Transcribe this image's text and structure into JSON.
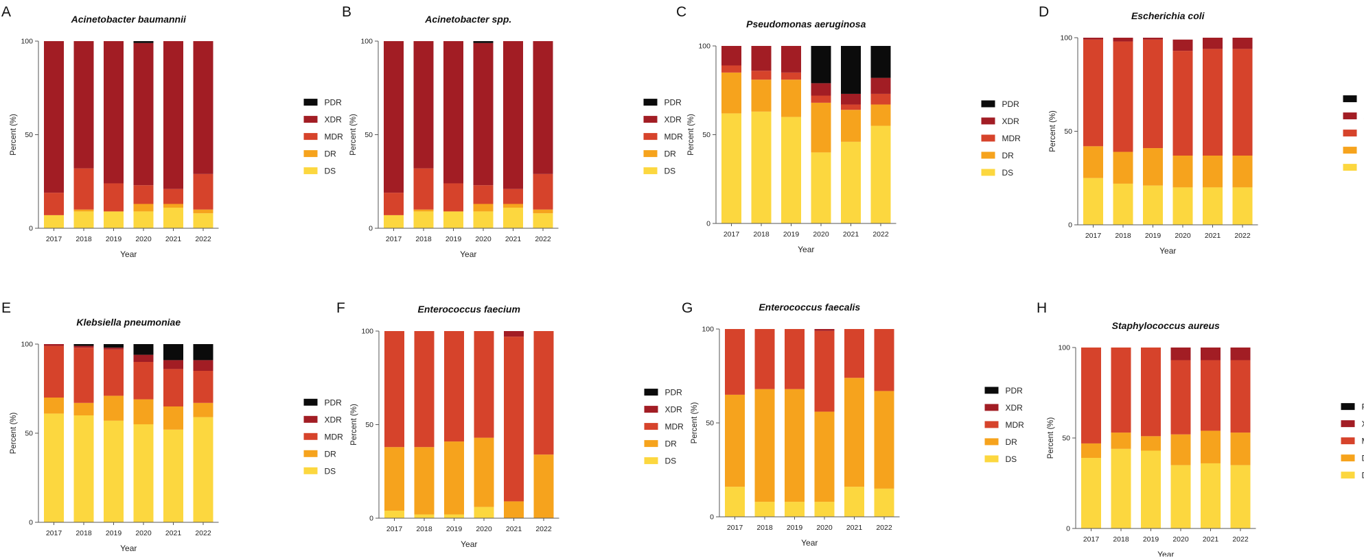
{
  "figure": {
    "colors": {
      "DS": "#FCD73F",
      "DR": "#F6A31D",
      "MDR": "#D6432B",
      "XDR": "#A21D24",
      "PDR": "#0B0B0B"
    },
    "stack_order": [
      "DS",
      "DR",
      "MDR",
      "XDR",
      "PDR"
    ],
    "legend_order": [
      "PDR",
      "XDR",
      "MDR",
      "DR",
      "DS"
    ]
  },
  "chart_data": [
    {
      "type": "bar",
      "stacked": true,
      "panel": "A",
      "title": "Acinetobacter baumannii",
      "xlabel": "Year",
      "ylabel": "Percent (%)",
      "ylim": [
        0,
        100
      ],
      "yticks": [
        0,
        50,
        100
      ],
      "categories": [
        "2017",
        "2018",
        "2019",
        "2020",
        "2021",
        "2022"
      ],
      "series": [
        {
          "name": "DS",
          "values": [
            7,
            9,
            9,
            9,
            11,
            8
          ]
        },
        {
          "name": "DR",
          "values": [
            0,
            1,
            0,
            4,
            2,
            2
          ]
        },
        {
          "name": "MDR",
          "values": [
            12,
            22,
            15,
            10,
            8,
            19
          ]
        },
        {
          "name": "XDR",
          "values": [
            81,
            68,
            76,
            76,
            79,
            71
          ]
        },
        {
          "name": "PDR",
          "values": [
            0,
            0,
            0,
            1,
            0,
            0
          ]
        }
      ],
      "legend": [
        "PDR",
        "XDR",
        "MDR",
        "DR",
        "DS"
      ]
    },
    {
      "type": "bar",
      "stacked": true,
      "panel": "B",
      "title": "Acinetobacter spp.",
      "xlabel": "Year",
      "ylabel": "Percent (%)",
      "ylim": [
        0,
        100
      ],
      "yticks": [
        0,
        50,
        100
      ],
      "categories": [
        "2017",
        "2018",
        "2019",
        "2020",
        "2021",
        "2022"
      ],
      "series": [
        {
          "name": "DS",
          "values": [
            7,
            9,
            9,
            9,
            11,
            8
          ]
        },
        {
          "name": "DR",
          "values": [
            0,
            1,
            0,
            4,
            2,
            2
          ]
        },
        {
          "name": "MDR",
          "values": [
            12,
            22,
            15,
            10,
            8,
            19
          ]
        },
        {
          "name": "XDR",
          "values": [
            81,
            68,
            76,
            76,
            79,
            71
          ]
        },
        {
          "name": "PDR",
          "values": [
            0,
            0,
            0,
            1,
            0,
            0
          ]
        }
      ],
      "legend": [
        "PDR",
        "XDR",
        "MDR",
        "DR",
        "DS"
      ]
    },
    {
      "type": "bar",
      "stacked": true,
      "panel": "C",
      "title": "Pseudomonas aeruginosa",
      "xlabel": "Year",
      "ylabel": "Percent (%)",
      "ylim": [
        0,
        100
      ],
      "yticks": [
        0,
        50,
        100
      ],
      "categories": [
        "2017",
        "2018",
        "2019",
        "2020",
        "2021",
        "2022"
      ],
      "series": [
        {
          "name": "DS",
          "values": [
            62,
            63,
            60,
            40,
            46,
            55
          ]
        },
        {
          "name": "DR",
          "values": [
            23,
            18,
            21,
            28,
            18,
            12
          ]
        },
        {
          "name": "MDR",
          "values": [
            4,
            5,
            4,
            4,
            3,
            6
          ]
        },
        {
          "name": "XDR",
          "values": [
            11,
            14,
            15,
            7,
            6,
            9
          ]
        },
        {
          "name": "PDR",
          "values": [
            0,
            0,
            0,
            21,
            27,
            18
          ]
        }
      ],
      "legend": [
        "PDR",
        "XDR",
        "MDR",
        "DR",
        "DS"
      ]
    },
    {
      "type": "bar",
      "stacked": true,
      "panel": "D",
      "title": "Escherichia coli",
      "xlabel": "Year",
      "ylabel": "Percent (%)",
      "ylim": [
        0,
        100
      ],
      "yticks": [
        0,
        50,
        100
      ],
      "categories": [
        "2017",
        "2018",
        "2019",
        "2020",
        "2021",
        "2022"
      ],
      "series": [
        {
          "name": "DS",
          "values": [
            25,
            22,
            21,
            20,
            20,
            20
          ]
        },
        {
          "name": "DR",
          "values": [
            17,
            17,
            20,
            17,
            17,
            17
          ]
        },
        {
          "name": "MDR",
          "values": [
            57,
            59,
            58,
            56,
            57,
            57
          ]
        },
        {
          "name": "XDR",
          "values": [
            1,
            2,
            1,
            6,
            6,
            6
          ]
        },
        {
          "name": "PDR",
          "values": [
            0,
            0,
            0,
            0,
            0,
            0
          ]
        }
      ],
      "legend": [
        "PDR",
        "XDR",
        "MDR",
        "DR",
        "DS"
      ]
    },
    {
      "type": "bar",
      "stacked": true,
      "panel": "E",
      "title": "Klebsiella pneumoniae",
      "xlabel": "Year",
      "ylabel": "Percent (%)",
      "ylim": [
        0,
        100
      ],
      "yticks": [
        0,
        50,
        100
      ],
      "categories": [
        "2017",
        "2018",
        "2019",
        "2020",
        "2021",
        "2022"
      ],
      "series": [
        {
          "name": "DS",
          "values": [
            61,
            60,
            57,
            55,
            52,
            59
          ]
        },
        {
          "name": "DR",
          "values": [
            9,
            7,
            14,
            14,
            13,
            8
          ]
        },
        {
          "name": "MDR",
          "values": [
            29,
            31,
            26,
            21,
            21,
            18
          ]
        },
        {
          "name": "XDR",
          "values": [
            1,
            1,
            1,
            4,
            5,
            6
          ]
        },
        {
          "name": "PDR",
          "values": [
            0,
            1,
            2,
            6,
            9,
            9
          ]
        }
      ],
      "legend": [
        "PDR",
        "XDR",
        "MDR",
        "DR",
        "DS"
      ]
    },
    {
      "type": "bar",
      "stacked": true,
      "panel": "F",
      "title": "Enterococcus faecium",
      "xlabel": "Year",
      "ylabel": "Percent (%)",
      "ylim": [
        0,
        100
      ],
      "yticks": [
        0,
        50,
        100
      ],
      "categories": [
        "2017",
        "2018",
        "2019",
        "2020",
        "2021",
        "2022"
      ],
      "series": [
        {
          "name": "DS",
          "values": [
            4,
            2,
            2,
            6,
            0,
            0
          ]
        },
        {
          "name": "DR",
          "values": [
            34,
            36,
            39,
            37,
            9,
            34
          ]
        },
        {
          "name": "MDR",
          "values": [
            62,
            62,
            59,
            57,
            88,
            66
          ]
        },
        {
          "name": "XDR",
          "values": [
            0,
            0,
            0,
            0,
            3,
            0
          ]
        },
        {
          "name": "PDR",
          "values": [
            0,
            0,
            0,
            0,
            0,
            0
          ]
        }
      ],
      "legend": [
        "PDR",
        "XDR",
        "MDR",
        "DR",
        "DS"
      ]
    },
    {
      "type": "bar",
      "stacked": true,
      "panel": "G",
      "title": "Enterococcus faecalis",
      "xlabel": "Year",
      "ylabel": "Percent (%)",
      "ylim": [
        0,
        100
      ],
      "yticks": [
        0,
        50,
        100
      ],
      "categories": [
        "2017",
        "2018",
        "2019",
        "2020",
        "2021",
        "2022"
      ],
      "series": [
        {
          "name": "DS",
          "values": [
            16,
            8,
            8,
            8,
            16,
            15
          ]
        },
        {
          "name": "DR",
          "values": [
            49,
            60,
            60,
            48,
            58,
            52
          ]
        },
        {
          "name": "MDR",
          "values": [
            35,
            32,
            32,
            43,
            26,
            33
          ]
        },
        {
          "name": "XDR",
          "values": [
            0,
            0,
            0,
            1,
            0,
            0
          ]
        },
        {
          "name": "PDR",
          "values": [
            0,
            0,
            0,
            0,
            0,
            0
          ]
        }
      ],
      "legend": [
        "PDR",
        "XDR",
        "MDR",
        "DR",
        "DS"
      ]
    },
    {
      "type": "bar",
      "stacked": true,
      "panel": "H",
      "title": "Staphylococcus aureus",
      "xlabel": "Year",
      "ylabel": "Percent (%)",
      "ylim": [
        0,
        100
      ],
      "yticks": [
        0,
        50,
        100
      ],
      "categories": [
        "2017",
        "2018",
        "2019",
        "2020",
        "2021",
        "2022"
      ],
      "series": [
        {
          "name": "DS",
          "values": [
            39,
            44,
            43,
            35,
            36,
            35
          ]
        },
        {
          "name": "DR",
          "values": [
            8,
            9,
            8,
            17,
            18,
            18
          ]
        },
        {
          "name": "MDR",
          "values": [
            53,
            47,
            49,
            41,
            39,
            40
          ]
        },
        {
          "name": "XDR",
          "values": [
            0,
            0,
            0,
            7,
            7,
            7
          ]
        },
        {
          "name": "PDR",
          "values": [
            0,
            0,
            0,
            0,
            0,
            0
          ]
        }
      ],
      "legend": [
        "PDR",
        "XDR",
        "MDR",
        "DR",
        "DS"
      ]
    }
  ]
}
